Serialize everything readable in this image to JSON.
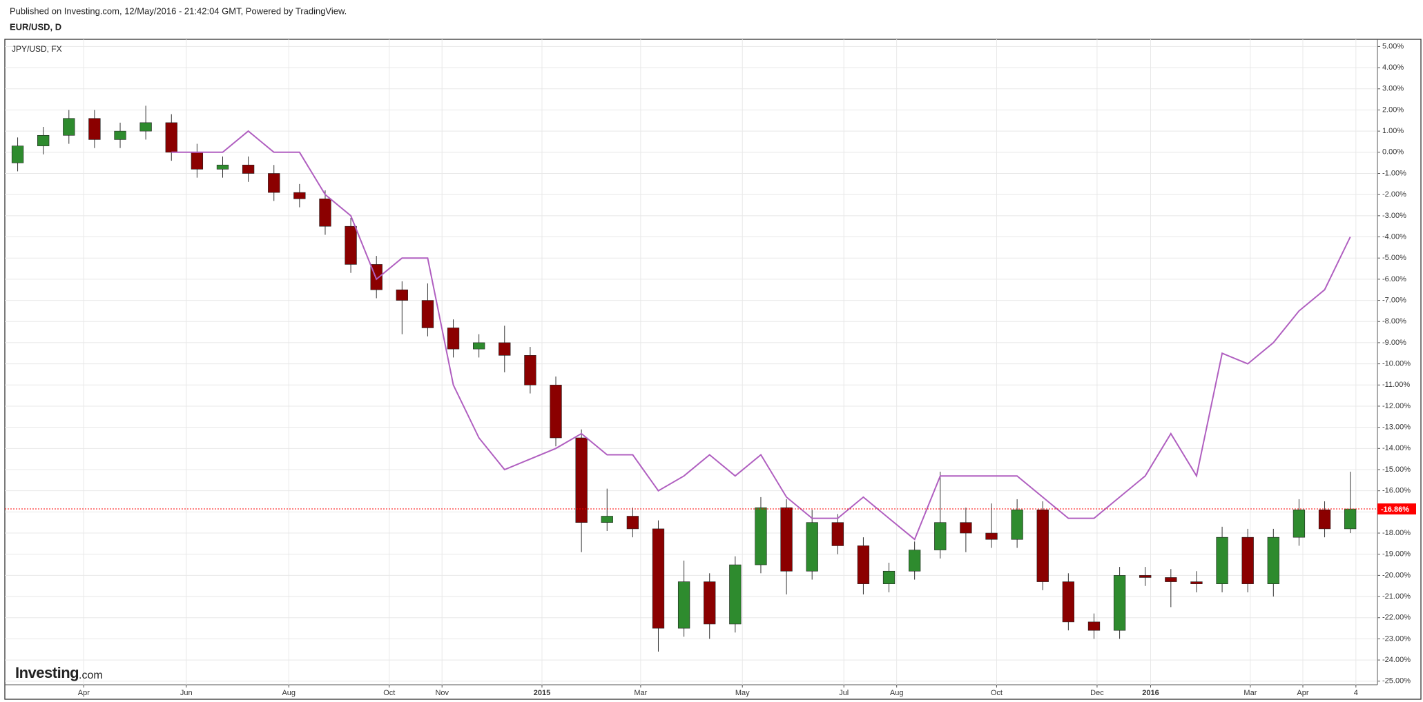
{
  "chart_data": {
    "type": "candlestick",
    "subtitle": "Published on Investing.com, 12/May/2016 - 21:42:04 GMT, Powered by TradingView.",
    "title": "EUR/USD, D",
    "x": [
      0.5,
      1.5,
      2.5,
      3.5,
      4.5,
      5.5,
      6.5,
      7.5,
      8.5,
      9.5,
      10.5,
      11.5,
      12.5,
      13.5,
      14.5,
      15.5,
      16.5,
      17.5,
      18.5,
      19.5,
      20.5,
      21.5,
      22.5,
      23.5,
      24.5,
      25.5,
      26.5,
      27.5,
      28.5,
      29.5,
      30.5,
      31.5,
      32.5,
      33.5,
      34.5,
      35.5,
      36.5,
      37.5,
      38.5,
      39.5,
      40.5,
      41.5,
      42.5,
      43.5,
      44.5,
      45.5,
      46.5,
      47.5,
      48.5,
      49.5,
      50.5,
      51.5,
      52.5
    ],
    "open": [
      -0.5,
      0.3,
      0.8,
      1.6,
      0.6,
      1.0,
      1.4,
      0.0,
      -0.8,
      -0.6,
      -1.0,
      -1.9,
      -2.2,
      -3.5,
      -5.3,
      -6.5,
      -7.0,
      -8.3,
      -9.3,
      -9.0,
      -9.6,
      -11.0,
      -13.5,
      -17.5,
      -17.2,
      -17.8,
      -22.5,
      -20.3,
      -22.3,
      -19.5,
      -16.8,
      -19.8,
      -17.5,
      -18.6,
      -20.4,
      -19.8,
      -18.8,
      -17.5,
      -18.0,
      -18.3,
      -16.9,
      -20.3,
      -22.2,
      -22.6,
      -20.0,
      -20.1,
      -20.3,
      -20.4,
      -18.2,
      -20.4,
      -18.2,
      -16.9,
      -17.8
    ],
    "high": [
      0.7,
      1.2,
      2.0,
      2.0,
      1.4,
      2.2,
      1.8,
      0.4,
      -0.2,
      -0.2,
      -0.6,
      -1.5,
      -1.8,
      -3.1,
      -4.9,
      -6.1,
      -6.2,
      -7.9,
      -8.6,
      -8.2,
      -9.2,
      -10.6,
      -13.1,
      -15.9,
      -16.8,
      -17.4,
      -19.3,
      -19.9,
      -19.1,
      -16.3,
      -16.4,
      -16.9,
      -17.1,
      -18.2,
      -19.4,
      -18.4,
      -15.1,
      -16.8,
      -16.6,
      -16.4,
      -16.5,
      -19.9,
      -21.8,
      -19.6,
      -19.6,
      -19.7,
      -19.8,
      -17.7,
      -17.8,
      -17.8,
      -16.4,
      -16.5,
      -15.1
    ],
    "low": [
      -0.9,
      -0.1,
      0.4,
      0.2,
      0.2,
      0.6,
      -0.4,
      -1.2,
      -1.2,
      -1.4,
      -2.3,
      -2.6,
      -3.9,
      -5.7,
      -6.9,
      -8.6,
      -8.7,
      -9.7,
      -9.7,
      -10.4,
      -11.4,
      -13.9,
      -18.9,
      -17.9,
      -18.2,
      -23.6,
      -22.9,
      -23.0,
      -22.7,
      -19.9,
      -20.9,
      -20.2,
      -19.0,
      -20.9,
      -20.8,
      -20.2,
      -19.2,
      -18.9,
      -18.7,
      -18.7,
      -20.7,
      -22.6,
      -23.0,
      -23.0,
      -20.5,
      -21.5,
      -20.8,
      -20.8,
      -20.8,
      -21.0,
      -18.6,
      -18.2,
      -18.0
    ],
    "close": [
      0.3,
      0.8,
      1.6,
      0.6,
      1.0,
      1.4,
      0.0,
      -0.8,
      -0.6,
      -1.0,
      -1.9,
      -2.2,
      -3.5,
      -5.3,
      -6.5,
      -7.0,
      -8.3,
      -9.3,
      -9.0,
      -9.6,
      -11.0,
      -13.5,
      -17.5,
      -17.2,
      -17.8,
      -22.5,
      -20.3,
      -22.3,
      -19.5,
      -16.8,
      -19.8,
      -17.5,
      -18.6,
      -20.4,
      -19.8,
      -18.8,
      -17.5,
      -18.0,
      -18.3,
      -16.9,
      -20.3,
      -22.2,
      -22.6,
      -20.0,
      -20.1,
      -20.3,
      -20.4,
      -18.2,
      -20.4,
      -18.2,
      -16.9,
      -17.8,
      -16.86
    ],
    "up_color": "#2e8b2e",
    "down_color": "#8b0000",
    "line_series": {
      "name": "JPY/USD, FX",
      "color": "#b05fc0",
      "values": [
        null,
        null,
        null,
        null,
        null,
        null,
        0.0,
        0.0,
        0.0,
        1.0,
        0.0,
        0.0,
        -2.0,
        -3.0,
        -6.0,
        -5.0,
        -5.0,
        -11.0,
        -13.5,
        -15.0,
        -14.5,
        -14.0,
        -13.3,
        -14.3,
        -14.3,
        -16.0,
        -15.3,
        -14.3,
        -15.3,
        -14.3,
        -16.3,
        -17.3,
        -17.3,
        -16.3,
        -17.3,
        -18.3,
        -15.3,
        -15.3,
        -15.3,
        -15.3,
        -16.3,
        -17.3,
        -17.3,
        -16.3,
        -15.3,
        -13.3,
        -15.3,
        -9.5,
        -10.0,
        -9.0,
        -7.5,
        -6.5,
        -4.0
      ]
    },
    "last_value_label": "-16.86%",
    "last_value_color": "#ff0000",
    "xlim": [
      0,
      53.56
    ],
    "xticks": [
      {
        "value": 3.08,
        "label": "Apr"
      },
      {
        "value": 7.08,
        "label": "Jun"
      },
      {
        "value": 11.08,
        "label": "Aug"
      },
      {
        "value": 15.0,
        "label": "Oct"
      },
      {
        "value": 17.06,
        "label": "Nov"
      },
      {
        "value": 20.96,
        "label": "2015"
      },
      {
        "value": 24.81,
        "label": "Mar"
      },
      {
        "value": 28.78,
        "label": "May"
      },
      {
        "value": 32.74,
        "label": "Jul"
      },
      {
        "value": 34.8,
        "label": "Aug"
      },
      {
        "value": 38.7,
        "label": "Oct"
      },
      {
        "value": 42.62,
        "label": "Dec"
      },
      {
        "value": 44.71,
        "label": "2016"
      },
      {
        "value": 48.6,
        "label": "Mar"
      },
      {
        "value": 50.65,
        "label": "Apr"
      },
      {
        "value": 52.72,
        "label": "4"
      }
    ],
    "ylim": [
      -25.17,
      5.34
    ],
    "yticks": [
      {
        "value": 5,
        "label": "5.00%"
      },
      {
        "value": 4,
        "label": "4.00%"
      },
      {
        "value": 3,
        "label": "3.00%"
      },
      {
        "value": 2,
        "label": "2.00%"
      },
      {
        "value": 1,
        "label": "1.00%"
      },
      {
        "value": 0,
        "label": "0.00%"
      },
      {
        "value": -1,
        "label": "-1.00%"
      },
      {
        "value": -2,
        "label": "-2.00%"
      },
      {
        "value": -3,
        "label": "-3.00%"
      },
      {
        "value": -4,
        "label": "-4.00%"
      },
      {
        "value": -5,
        "label": "-5.00%"
      },
      {
        "value": -6,
        "label": "-6.00%"
      },
      {
        "value": -7,
        "label": "-7.00%"
      },
      {
        "value": -8,
        "label": "-8.00%"
      },
      {
        "value": -9,
        "label": "-9.00%"
      },
      {
        "value": -10,
        "label": "-10.00%"
      },
      {
        "value": -11,
        "label": "-11.00%"
      },
      {
        "value": -12,
        "label": "-12.00%"
      },
      {
        "value": -13,
        "label": "-13.00%"
      },
      {
        "value": -14,
        "label": "-14.00%"
      },
      {
        "value": -15,
        "label": "-15.00%"
      },
      {
        "value": -16,
        "label": "-16.00%"
      },
      {
        "value": -17,
        "label": "-17.00%"
      },
      {
        "value": -18,
        "label": "-18.00%"
      },
      {
        "value": -19,
        "label": "-19.00%"
      },
      {
        "value": -20,
        "label": "-20.00%"
      },
      {
        "value": -21,
        "label": "-21.00%"
      },
      {
        "value": -22,
        "label": "-22.00%"
      },
      {
        "value": -23,
        "label": "-23.00%"
      },
      {
        "value": -24,
        "label": "-24.00%"
      },
      {
        "value": -25,
        "label": "-25.00%"
      }
    ],
    "grid": true,
    "logo": {
      "brand": "Investing",
      "suffix": ".com"
    }
  }
}
